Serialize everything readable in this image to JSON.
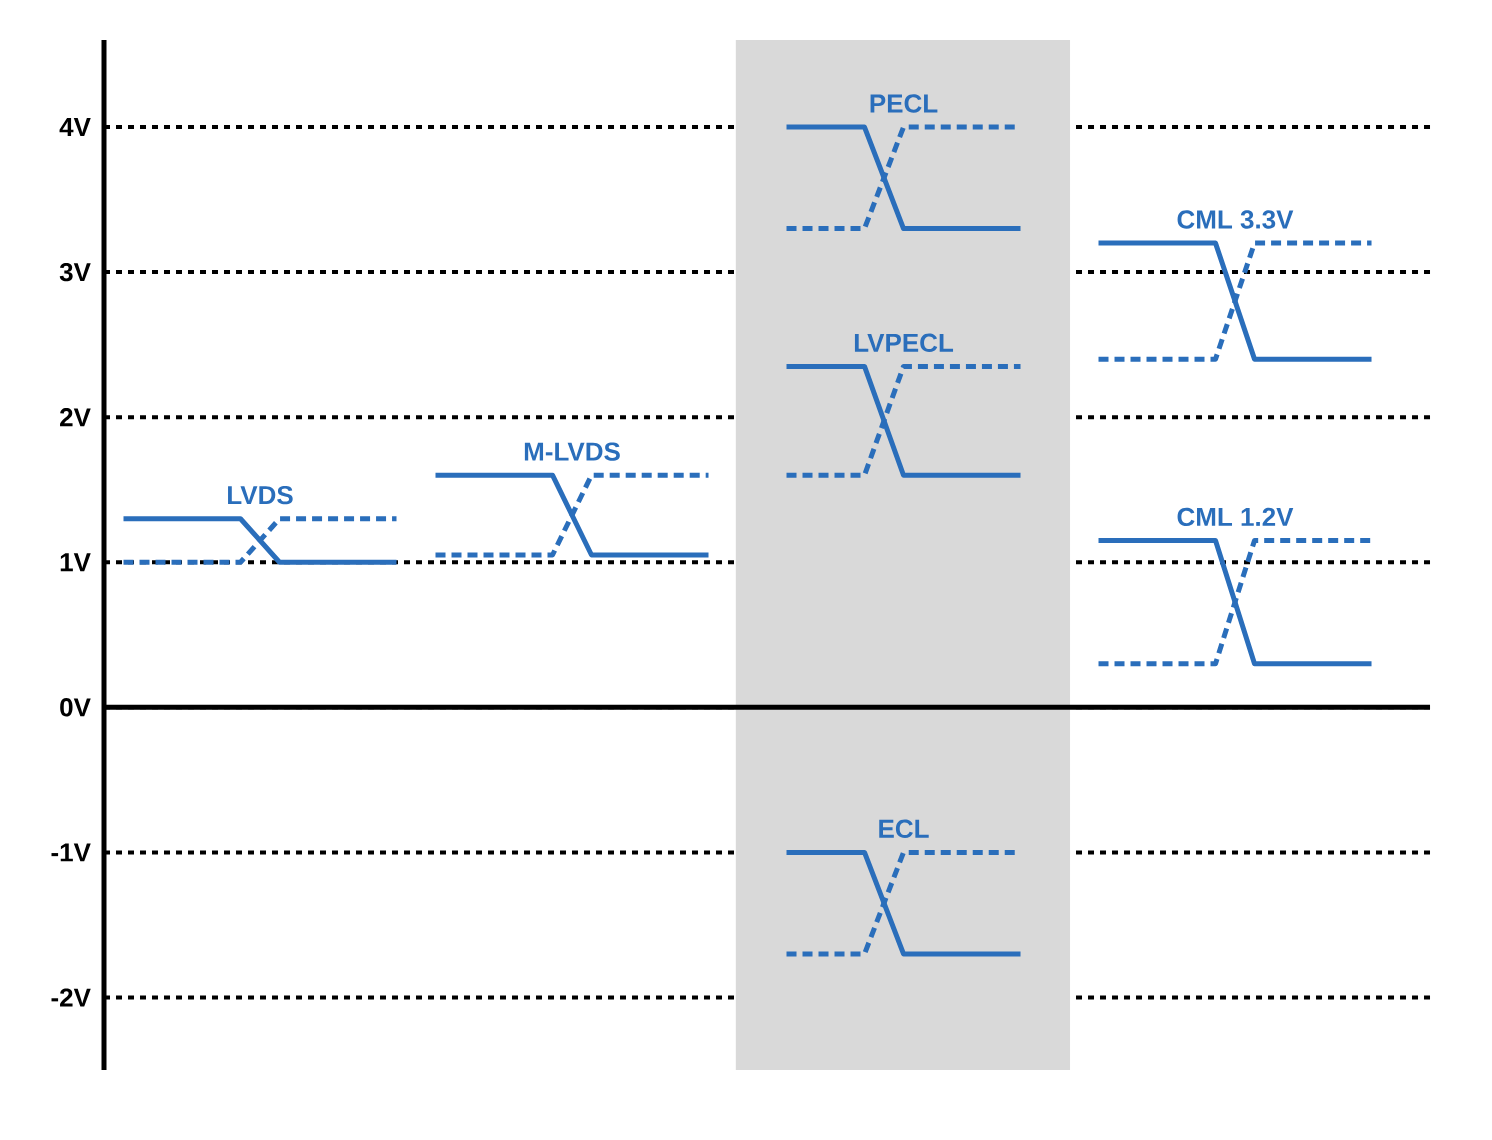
{
  "chart_data": {
    "type": "line",
    "categories": [
      null,
      null,
      null,
      null,
      null,
      null,
      null,
      null,
      null,
      null,
      null,
      null,
      null,
      null,
      null,
      null,
      null,
      null,
      null,
      null,
      null,
      null,
      null,
      null,
      null,
      null,
      null,
      null,
      null,
      null,
      null,
      null,
      null,
      null
    ],
    "ylim": [
      -2.5,
      4.6
    ],
    "yticks": [
      {
        "value": -2,
        "label": "-2V"
      },
      {
        "value": -1,
        "label": "-1V"
      },
      {
        "value": 0,
        "label": "0V"
      },
      {
        "value": 1,
        "label": "1V"
      },
      {
        "value": 2,
        "label": "2V"
      },
      {
        "value": 3,
        "label": "3V"
      },
      {
        "value": 4,
        "label": "4V"
      }
    ],
    "tick_labels": "y",
    "grid": "y",
    "marker": "none",
    "ref_lines": [
      {
        "axis": "y",
        "value": 0,
        "color": "#000000"
      }
    ],
    "series": [
      {
        "name": "LVDS",
        "color": "#2a6ebb",
        "line_style": "solid",
        "values": [
          1.3,
          1.3,
          1.3,
          1.3,
          1.0,
          1.0,
          1.0,
          1.0,
          null,
          null,
          null,
          null,
          null,
          null,
          null,
          null,
          null,
          null,
          null,
          null,
          null,
          null,
          null,
          null,
          null,
          null,
          null,
          null,
          null,
          null,
          null,
          null,
          null,
          null
        ]
      },
      {
        "color": "#2a6ebb",
        "line_style": "dashed",
        "values": [
          1.0,
          1.0,
          1.0,
          1.0,
          1.3,
          1.3,
          1.3,
          1.3,
          null,
          null,
          null,
          null,
          null,
          null,
          null,
          null,
          null,
          null,
          null,
          null,
          null,
          null,
          null,
          null,
          null,
          null,
          null,
          null,
          null,
          null,
          null,
          null,
          null,
          null
        ]
      },
      {
        "name": "M-LVDS",
        "color": "#2a6ebb",
        "line_style": "solid",
        "values": [
          null,
          null,
          null,
          null,
          null,
          null,
          null,
          null,
          1.6,
          1.6,
          1.6,
          1.6,
          1.05,
          1.05,
          1.05,
          1.05,
          null,
          null,
          null,
          null,
          null,
          null,
          null,
          null,
          null,
          null,
          null,
          null,
          null,
          null,
          null,
          null,
          null,
          null
        ]
      },
      {
        "color": "#2a6ebb",
        "line_style": "dashed",
        "values": [
          null,
          null,
          null,
          null,
          null,
          null,
          null,
          null,
          1.05,
          1.05,
          1.05,
          1.05,
          1.6,
          1.6,
          1.6,
          1.6,
          null,
          null,
          null,
          null,
          null,
          null,
          null,
          null,
          null,
          null,
          null,
          null,
          null,
          null,
          null,
          null,
          null,
          null
        ]
      },
      {
        "name": "PECL",
        "color": "#2a6ebb",
        "line_style": "solid",
        "values": [
          null,
          null,
          null,
          null,
          null,
          null,
          null,
          null,
          null,
          null,
          null,
          null,
          null,
          null,
          null,
          null,
          null,
          4.0,
          4.0,
          4.0,
          3.3,
          3.3,
          3.3,
          3.3,
          null,
          null,
          null,
          null,
          null,
          null,
          null,
          null,
          null,
          null
        ]
      },
      {
        "color": "#2a6ebb",
        "line_style": "dashed",
        "values": [
          null,
          null,
          null,
          null,
          null,
          null,
          null,
          null,
          null,
          null,
          null,
          null,
          null,
          null,
          null,
          null,
          null,
          3.3,
          3.3,
          3.3,
          4.0,
          4.0,
          4.0,
          4.0,
          null,
          null,
          null,
          null,
          null,
          null,
          null,
          null,
          null,
          null
        ]
      },
      {
        "name": "LVPECL",
        "color": "#2a6ebb",
        "line_style": "solid",
        "values": [
          null,
          null,
          null,
          null,
          null,
          null,
          null,
          null,
          null,
          null,
          null,
          null,
          null,
          null,
          null,
          null,
          null,
          2.35,
          2.35,
          2.35,
          1.6,
          1.6,
          1.6,
          1.6,
          null,
          null,
          null,
          null,
          null,
          null,
          null,
          null,
          null,
          null
        ]
      },
      {
        "color": "#2a6ebb",
        "line_style": "dashed",
        "values": [
          null,
          null,
          null,
          null,
          null,
          null,
          null,
          null,
          null,
          null,
          null,
          null,
          null,
          null,
          null,
          null,
          null,
          1.6,
          1.6,
          1.6,
          2.35,
          2.35,
          2.35,
          2.35,
          null,
          null,
          null,
          null,
          null,
          null,
          null,
          null,
          null,
          null
        ]
      },
      {
        "name": "ECL",
        "color": "#2a6ebb",
        "line_style": "solid",
        "values": [
          null,
          null,
          null,
          null,
          null,
          null,
          null,
          null,
          null,
          null,
          null,
          null,
          null,
          null,
          null,
          null,
          null,
          -1.0,
          -1.0,
          -1.0,
          -1.7,
          -1.7,
          -1.7,
          -1.7,
          null,
          null,
          null,
          null,
          null,
          null,
          null,
          null,
          null,
          null
        ]
      },
      {
        "color": "#2a6ebb",
        "line_style": "dashed",
        "values": [
          null,
          null,
          null,
          null,
          null,
          null,
          null,
          null,
          null,
          null,
          null,
          null,
          null,
          null,
          null,
          null,
          null,
          -1.7,
          -1.7,
          -1.7,
          -1.0,
          -1.0,
          -1.0,
          -1.0,
          null,
          null,
          null,
          null,
          null,
          null,
          null,
          null,
          null,
          null
        ]
      },
      {
        "name": "CML 3.3V",
        "color": "#2a6ebb",
        "line_style": "solid",
        "values": [
          null,
          null,
          null,
          null,
          null,
          null,
          null,
          null,
          null,
          null,
          null,
          null,
          null,
          null,
          null,
          null,
          null,
          null,
          null,
          null,
          null,
          null,
          null,
          null,
          null,
          3.2,
          3.2,
          3.2,
          3.2,
          2.4,
          2.4,
          2.4,
          2.4,
          null
        ]
      },
      {
        "color": "#2a6ebb",
        "line_style": "dashed",
        "values": [
          null,
          null,
          null,
          null,
          null,
          null,
          null,
          null,
          null,
          null,
          null,
          null,
          null,
          null,
          null,
          null,
          null,
          null,
          null,
          null,
          null,
          null,
          null,
          null,
          null,
          2.4,
          2.4,
          2.4,
          2.4,
          3.2,
          3.2,
          3.2,
          3.2,
          null
        ]
      },
      {
        "name": "CML 1.2V",
        "color": "#2a6ebb",
        "line_style": "solid",
        "values": [
          null,
          null,
          null,
          null,
          null,
          null,
          null,
          null,
          null,
          null,
          null,
          null,
          null,
          null,
          null,
          null,
          null,
          null,
          null,
          null,
          null,
          null,
          null,
          null,
          null,
          1.15,
          1.15,
          1.15,
          1.15,
          0.3,
          0.3,
          0.3,
          0.3,
          null
        ]
      },
      {
        "color": "#2a6ebb",
        "line_style": "dashed",
        "values": [
          null,
          null,
          null,
          null,
          null,
          null,
          null,
          null,
          null,
          null,
          null,
          null,
          null,
          null,
          null,
          null,
          null,
          null,
          null,
          null,
          null,
          null,
          null,
          null,
          null,
          0.3,
          0.3,
          0.3,
          0.3,
          1.15,
          1.15,
          1.15,
          1.15,
          null
        ]
      }
    ]
  }
}
